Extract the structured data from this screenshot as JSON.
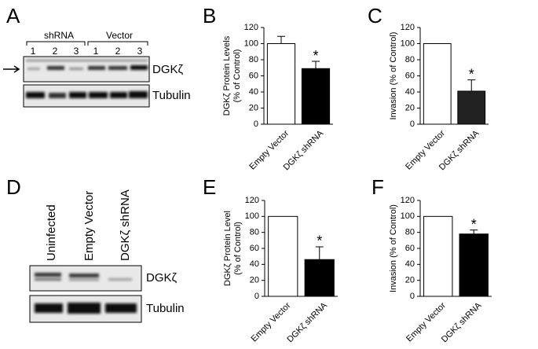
{
  "blots": [
    {
      "panel_label": "A",
      "groups": [
        "shRNA",
        "Vector"
      ],
      "lanes": [
        "1",
        "2",
        "3",
        "1",
        "2",
        "3"
      ],
      "bands": [
        "DGKζ",
        "Tubulin"
      ]
    },
    {
      "panel_label": "D",
      "lanes": [
        "Uninfected",
        "Empty Vector",
        "DGKζ shRNA"
      ],
      "bands": [
        "DGKζ",
        "Tubulin"
      ]
    }
  ],
  "chart_data": [
    {
      "type": "bar",
      "panel_label": "B",
      "y_label": [
        "DGKζ Protein Levels",
        "(% of Control)"
      ],
      "categories": [
        "Empty Vector",
        "DGKζ shRNA"
      ],
      "values": [
        100,
        69
      ],
      "errors": [
        9,
        9
      ],
      "colors": [
        "#ffffff",
        "#000000"
      ],
      "significance": [
        null,
        "*"
      ],
      "ylim": [
        0,
        120
      ],
      "yticks": [
        0,
        20,
        40,
        60,
        80,
        100,
        120
      ]
    },
    {
      "type": "bar",
      "panel_label": "C",
      "y_label": [
        "Invasion (% of Control)"
      ],
      "categories": [
        "Empty Vector",
        "DGKζ shRNA"
      ],
      "values": [
        100,
        41
      ],
      "errors": [
        null,
        14
      ],
      "colors": [
        "#ffffff",
        "#222222"
      ],
      "significance": [
        null,
        "*"
      ],
      "ylim": [
        0,
        120
      ],
      "yticks": [
        0,
        20,
        40,
        60,
        80,
        100,
        120
      ]
    },
    {
      "type": "bar",
      "panel_label": "E",
      "y_label": [
        "DGKζ Protein Level",
        "(% of Control)"
      ],
      "categories": [
        "Empty Vector",
        "DGKζ shRNA"
      ],
      "values": [
        100,
        46
      ],
      "errors": [
        null,
        16
      ],
      "colors": [
        "#ffffff",
        "#000000"
      ],
      "significance": [
        null,
        "*"
      ],
      "ylim": [
        0,
        120
      ],
      "yticks": [
        0,
        20,
        40,
        60,
        80,
        100,
        120
      ]
    },
    {
      "type": "bar",
      "panel_label": "F",
      "y_label": [
        "Invasion (% of Control)"
      ],
      "categories": [
        "Empty Vector",
        "DGKζ shRNA"
      ],
      "values": [
        100,
        78
      ],
      "errors": [
        null,
        5
      ],
      "colors": [
        "#ffffff",
        "#000000"
      ],
      "significance": [
        null,
        "*"
      ],
      "ylim": [
        0,
        120
      ],
      "yticks": [
        0,
        20,
        40,
        60,
        80,
        100,
        120
      ]
    }
  ]
}
